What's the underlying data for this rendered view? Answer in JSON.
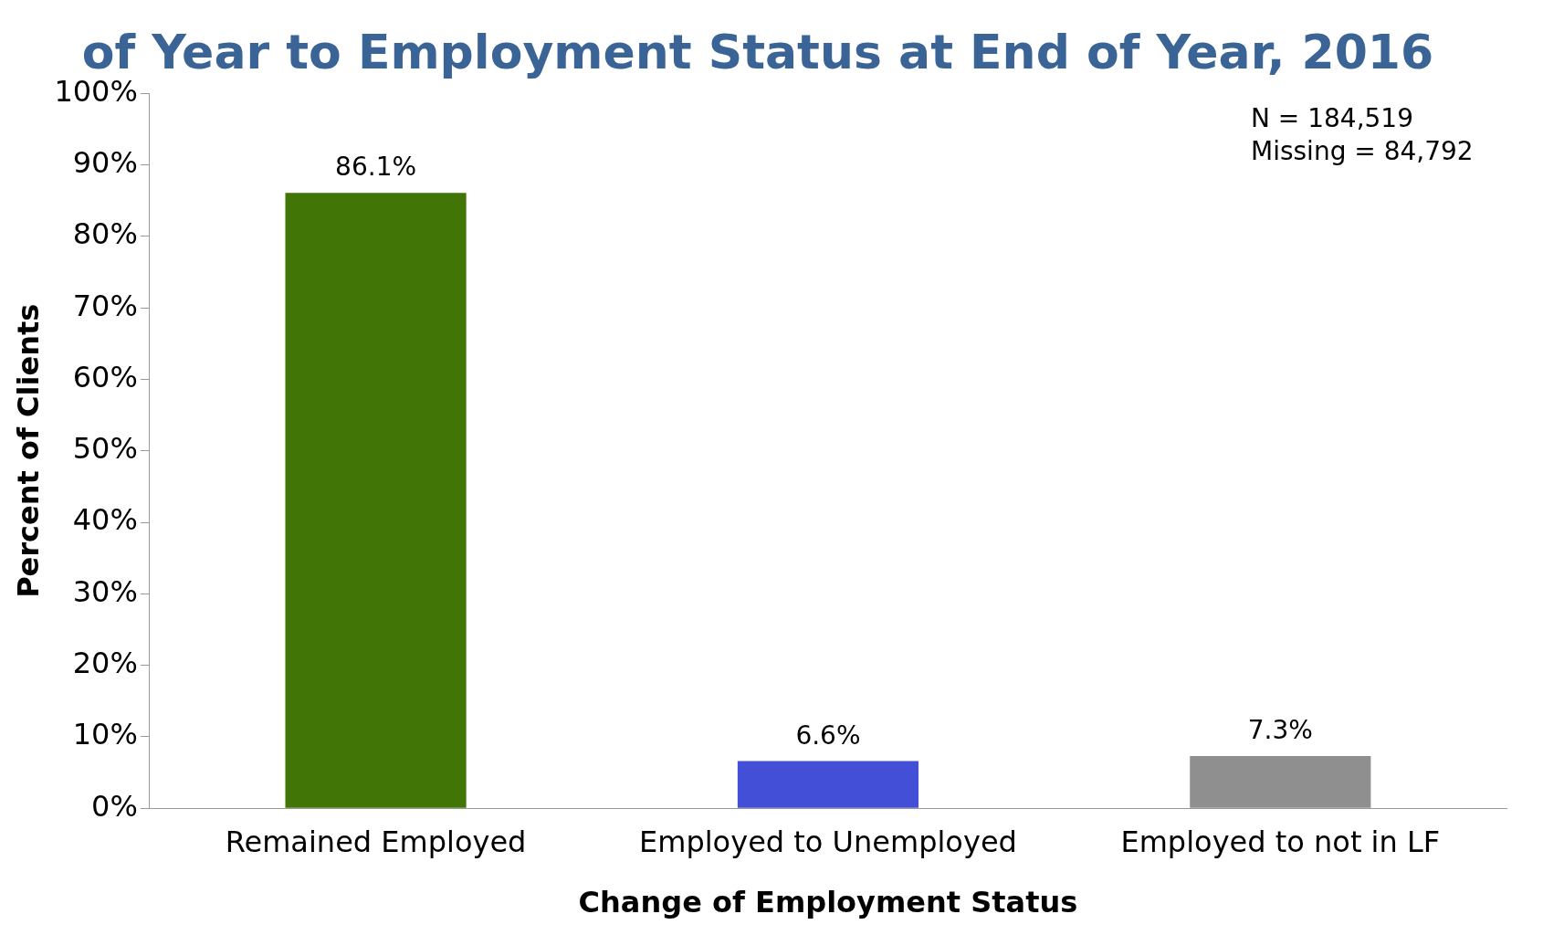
{
  "chart_data": {
    "type": "bar",
    "title": "of Year to Employment Status at End of Year, 2016",
    "xlabel": "Change of Employment Status",
    "ylabel": "Percent of Clients",
    "categories": [
      "Remained Employed",
      "Employed to Unemployed",
      "Employed to not in LF"
    ],
    "values": [
      86.1,
      6.6,
      7.3
    ],
    "colors": [
      "#417505",
      "#434fd6",
      "#8f8f8f"
    ],
    "value_labels": [
      "86.1%",
      "6.6%",
      "7.3%"
    ],
    "ylim": [
      0,
      100
    ],
    "yticks": [
      {
        "value": 0,
        "label": "0%"
      },
      {
        "value": 10,
        "label": "10%"
      },
      {
        "value": 20,
        "label": "20%"
      },
      {
        "value": 30,
        "label": "30%"
      },
      {
        "value": 40,
        "label": "40%"
      },
      {
        "value": 50,
        "label": "50%"
      },
      {
        "value": 60,
        "label": "60%"
      },
      {
        "value": 70,
        "label": "70%"
      },
      {
        "value": 80,
        "label": "80%"
      },
      {
        "value": 90,
        "label": "90%"
      },
      {
        "value": 100,
        "label": "100%"
      }
    ],
    "annotations": [
      "N = 184,519",
      "Missing = 84,792"
    ],
    "grid": false,
    "legend": false
  }
}
